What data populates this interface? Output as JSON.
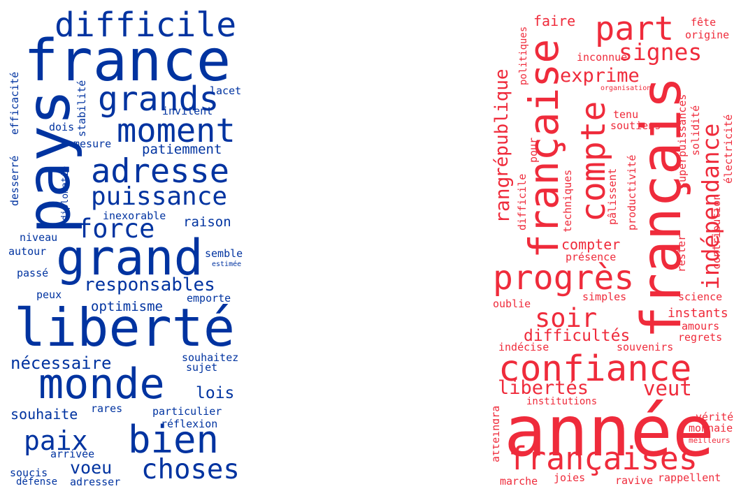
{
  "colors": {
    "blue": "#0033a0",
    "red": "#ef2b3b",
    "background": "#ffffff"
  },
  "left_cloud": {
    "difficile": "difficile",
    "france": "france",
    "pays": "pays",
    "grands": "grands",
    "moment": "moment",
    "adresse": "adresse",
    "puissance": "puissance",
    "force": "force",
    "grand": "grand",
    "responsables": "responsables",
    "liberte": "liberté",
    "monde": "monde",
    "bien": "bien",
    "paix": "paix",
    "choses": "choses",
    "necessaire": "nécessaire",
    "optimisme": "optimisme",
    "lois": "lois",
    "voeu": "voeu",
    "souhaite": "souhaite",
    "raison": "raison",
    "patiemment": "patiemment",
    "invitent": "invitent",
    "lacet": "lacet",
    "dois": "dois",
    "mesure": "mesure",
    "stabilite": "stabilité",
    "efficacite": "efficacité",
    "desserre": "desserré",
    "diplomatie": "diplomatie",
    "inexorable": "inexorable",
    "niveau": "niveau",
    "autour": "autour",
    "semble": "semble",
    "estimee": "estimée",
    "passe": "passé",
    "peux": "peux",
    "emporte": "emporte",
    "souhaitez": "souhaitez",
    "sujet": "sujet",
    "rares": "rares",
    "particulier": "particulier",
    "reflexion": "réflexion",
    "arrivee": "arrivée",
    "soucis": "soucis",
    "defense": "défense",
    "adresser": "adresser"
  },
  "right_cloud": {
    "annee": "année",
    "francais": "français",
    "confiance": "confiance",
    "francaises": "françaises",
    "francaise": "française",
    "compte": "compte",
    "progres": "progrès",
    "part": "part",
    "signes": "signes",
    "independance": "indépendance",
    "soir": "soir",
    "libertes": "libertés",
    "veut": "veut",
    "rang": "rang",
    "republique": "république",
    "exprime": "exprime",
    "difficultes": "difficultés",
    "faire": "faire",
    "fete": "fête",
    "origine": "origine",
    "inconnue": "inconnue",
    "politiques": "politiques",
    "organisation": "organisation",
    "tenu": "tenu",
    "soutiens": "soutiens",
    "superpuissances": "superpuissances",
    "solidite": "solidité",
    "electricite": "électricité",
    "difficile": "difficile",
    "pour": "pour",
    "techniques": "techniques",
    "palissent": "pâlissent",
    "productivite": "productivité",
    "contribution": "contribution",
    "compter": "compter",
    "presence": "présence",
    "rester": "rester",
    "simples": "simples",
    "science": "science",
    "oublie": "oublie",
    "instants": "instants",
    "amours": "amours",
    "regrets": "regrets",
    "indecise": "indécise",
    "souvenirs": "souvenirs",
    "institutions": "institutions",
    "atteindra": "atteindra",
    "verite": "vérité",
    "monnaie": "monnaie",
    "meilleurs": "meilleurs",
    "marche": "marche",
    "joies": "joies",
    "ravive": "ravive",
    "rappellent": "rappellent"
  }
}
